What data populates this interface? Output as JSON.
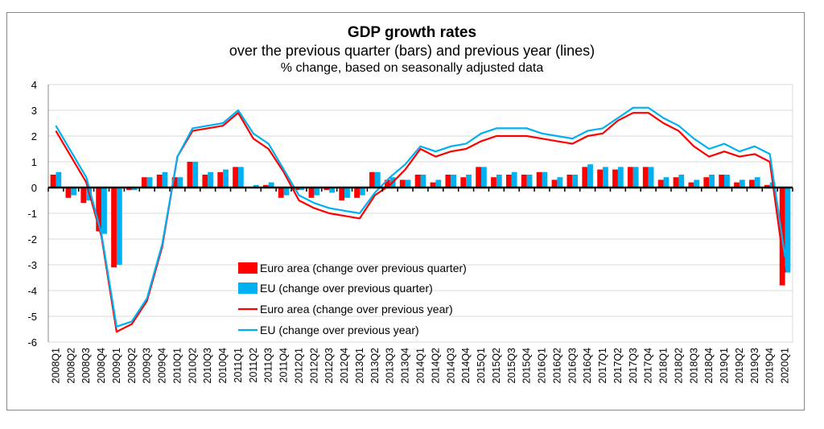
{
  "chart_data": {
    "type": "bar+line",
    "title": "GDP growth rates",
    "subtitle": "over the previous quarter (bars) and previous year (lines)",
    "subtitle2": "% change, based on seasonally adjusted data",
    "xlabel": "",
    "ylabel": "",
    "ylim": [
      -6,
      4
    ],
    "yticks": [
      4,
      3,
      2,
      1,
      0,
      -1,
      -2,
      -3,
      -4,
      -5,
      -6
    ],
    "grid": true,
    "legend_position": "bottom-left inside",
    "categories": [
      "2008Q1",
      "2008Q2",
      "2008Q3",
      "2008Q4",
      "2009Q1",
      "2009Q2",
      "2009Q3",
      "2009Q4",
      "2010Q1",
      "2010Q2",
      "2010Q3",
      "2010Q4",
      "2011Q1",
      "2011Q2",
      "2011Q3",
      "2011Q4",
      "2012Q1",
      "2012Q2",
      "2012Q3",
      "2012Q4",
      "2013Q1",
      "2013Q2",
      "2013Q3",
      "2013Q4",
      "2014Q1",
      "2014Q2",
      "2014Q3",
      "2014Q4",
      "2015Q1",
      "2015Q2",
      "2015Q3",
      "2015Q4",
      "2016Q1",
      "2016Q2",
      "2016Q3",
      "2016Q4",
      "2017Q1",
      "2017Q2",
      "2017Q3",
      "2017Q4",
      "2018Q1",
      "2018Q2",
      "2018Q3",
      "2018Q4",
      "2019Q1",
      "2019Q2",
      "2019Q3",
      "2019Q4",
      "2020Q1"
    ],
    "series": [
      {
        "name": "Euro area (change over previous quarter)",
        "kind": "bar",
        "color": "#ff0000",
        "values": [
          0.5,
          -0.4,
          -0.6,
          -1.7,
          -3.1,
          -0.1,
          0.4,
          0.5,
          0.4,
          1.0,
          0.5,
          0.6,
          0.8,
          0.0,
          0.1,
          -0.4,
          -0.1,
          -0.4,
          -0.1,
          -0.5,
          -0.4,
          0.6,
          0.3,
          0.3,
          0.5,
          0.2,
          0.5,
          0.4,
          0.8,
          0.4,
          0.5,
          0.5,
          0.6,
          0.3,
          0.5,
          0.8,
          0.7,
          0.7,
          0.8,
          0.8,
          0.3,
          0.4,
          0.2,
          0.4,
          0.5,
          0.2,
          0.3,
          0.1,
          -3.8
        ]
      },
      {
        "name": "EU (change over previous quarter)",
        "kind": "bar",
        "color": "#00b0f0",
        "values": [
          0.6,
          -0.3,
          -0.5,
          -1.8,
          -3.0,
          -0.1,
          0.4,
          0.6,
          0.4,
          1.0,
          0.6,
          0.7,
          0.8,
          0.1,
          0.2,
          -0.3,
          -0.1,
          -0.3,
          -0.2,
          -0.4,
          -0.3,
          0.6,
          0.4,
          0.3,
          0.5,
          0.3,
          0.5,
          0.5,
          0.8,
          0.5,
          0.6,
          0.5,
          0.6,
          0.4,
          0.5,
          0.9,
          0.8,
          0.8,
          0.8,
          0.8,
          0.4,
          0.5,
          0.3,
          0.5,
          0.5,
          0.3,
          0.4,
          0.2,
          -3.3
        ]
      },
      {
        "name": "Euro area (change over previous year)",
        "kind": "line",
        "color": "#ff0000",
        "values": [
          2.2,
          1.2,
          0.2,
          -1.9,
          -5.6,
          -5.3,
          -4.4,
          -2.3,
          1.2,
          2.2,
          2.3,
          2.4,
          2.9,
          1.9,
          1.5,
          0.6,
          -0.5,
          -0.8,
          -1.0,
          -1.1,
          -1.2,
          -0.3,
          0.1,
          0.7,
          1.5,
          1.2,
          1.4,
          1.5,
          1.8,
          2.0,
          2.0,
          2.0,
          1.9,
          1.8,
          1.7,
          2.0,
          2.1,
          2.6,
          2.9,
          2.9,
          2.5,
          2.2,
          1.6,
          1.2,
          1.4,
          1.2,
          1.3,
          1.0,
          -3.3
        ]
      },
      {
        "name": "EU (change over previous year)",
        "kind": "line",
        "color": "#00b0f0",
        "values": [
          2.4,
          1.4,
          0.4,
          -1.8,
          -5.4,
          -5.2,
          -4.3,
          -2.2,
          1.2,
          2.3,
          2.4,
          2.5,
          3.0,
          2.1,
          1.7,
          0.7,
          -0.3,
          -0.6,
          -0.8,
          -0.9,
          -1.0,
          -0.2,
          0.4,
          0.9,
          1.6,
          1.4,
          1.6,
          1.7,
          2.1,
          2.3,
          2.3,
          2.3,
          2.1,
          2.0,
          1.9,
          2.2,
          2.3,
          2.7,
          3.1,
          3.1,
          2.7,
          2.4,
          1.9,
          1.5,
          1.7,
          1.4,
          1.6,
          1.3,
          -2.7
        ]
      }
    ]
  }
}
